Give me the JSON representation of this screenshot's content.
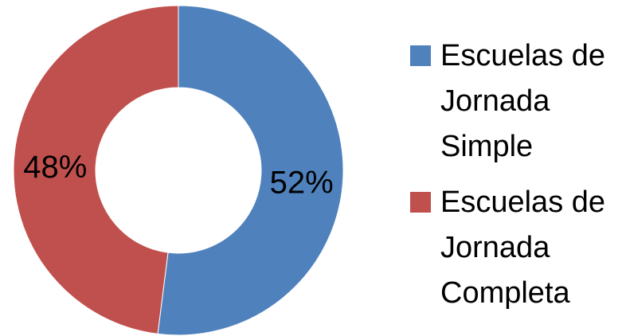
{
  "chart_data": {
    "type": "donut",
    "categories": [
      "Escuelas de Jornada Simple",
      "Escuelas de Jornada Completa"
    ],
    "values": [
      52,
      48
    ],
    "value_labels": [
      "52%",
      "48%"
    ],
    "colors": [
      "#4f81bd",
      "#c0504d"
    ],
    "legend": "right"
  }
}
